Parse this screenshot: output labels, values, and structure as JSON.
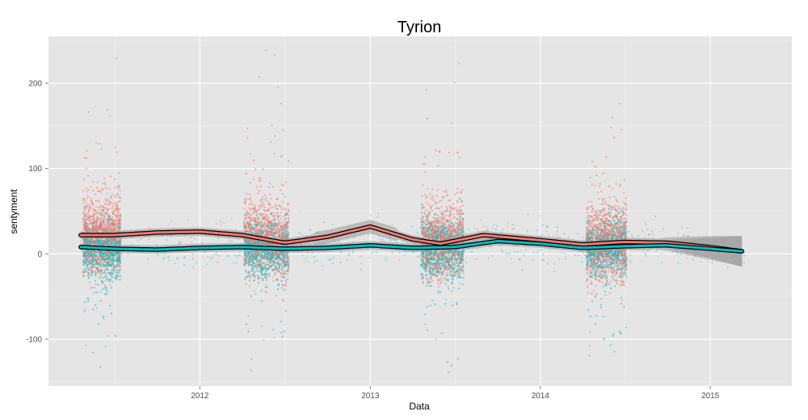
{
  "chart_data": {
    "type": "scatter",
    "title": "Tyrion",
    "xlabel": "Data",
    "ylabel": "sentyment",
    "xlim": [
      "2011-02-10",
      "2015-06-25"
    ],
    "ylim": [
      -155,
      255
    ],
    "x_ticks": [
      {
        "label": "2012",
        "date": "2012-01-01"
      },
      {
        "label": "2013",
        "date": "2013-01-01"
      },
      {
        "label": "2014",
        "date": "2014-01-01"
      },
      {
        "label": "2015",
        "date": "2015-01-01"
      }
    ],
    "y_ticks": [
      {
        "label": "-100",
        "value": -100
      },
      {
        "label": "0",
        "value": 0
      },
      {
        "label": "100",
        "value": 100
      },
      {
        "label": "200",
        "value": 200
      }
    ],
    "grid": true,
    "legend": "none",
    "colors": {
      "series_red": "#F8766D",
      "series_teal": "#00BFC4",
      "panel_bg": "#E5E5E5",
      "grid_major": "#FFFFFF",
      "grid_minor": "#F2F2F2",
      "ribbon": "#999999",
      "line_outline": "#000000"
    },
    "clusters": [
      {
        "start": "2011-04-25",
        "end": "2011-07-15"
      },
      {
        "start": "2012-04-05",
        "end": "2012-07-10"
      },
      {
        "start": "2013-04-20",
        "end": "2013-07-20"
      },
      {
        "start": "2014-04-10",
        "end": "2014-07-05"
      }
    ],
    "series": [
      {
        "color": "#F8766D",
        "smooth": [
          {
            "x": "2011-04-20",
            "y": 22
          },
          {
            "x": "2011-07-01",
            "y": 22
          },
          {
            "x": "2011-10-01",
            "y": 25
          },
          {
            "x": "2012-01-01",
            "y": 26
          },
          {
            "x": "2012-04-01",
            "y": 22
          },
          {
            "x": "2012-07-01",
            "y": 13
          },
          {
            "x": "2012-10-01",
            "y": 20
          },
          {
            "x": "2013-01-01",
            "y": 32
          },
          {
            "x": "2013-04-01",
            "y": 17
          },
          {
            "x": "2013-06-01",
            "y": 12
          },
          {
            "x": "2013-09-01",
            "y": 22
          },
          {
            "x": "2014-01-01",
            "y": 16
          },
          {
            "x": "2014-04-01",
            "y": 11
          },
          {
            "x": "2014-07-01",
            "y": 14
          },
          {
            "x": "2014-10-01",
            "y": 13
          },
          {
            "x": "2015-01-01",
            "y": 8
          },
          {
            "x": "2015-03-10",
            "y": 3
          }
        ]
      },
      {
        "color": "#00BFC4",
        "smooth": [
          {
            "x": "2011-04-20",
            "y": 8
          },
          {
            "x": "2011-07-01",
            "y": 6
          },
          {
            "x": "2011-10-01",
            "y": 5
          },
          {
            "x": "2012-01-01",
            "y": 7
          },
          {
            "x": "2012-04-01",
            "y": 8
          },
          {
            "x": "2012-07-01",
            "y": 6
          },
          {
            "x": "2012-10-01",
            "y": 7
          },
          {
            "x": "2013-01-01",
            "y": 10
          },
          {
            "x": "2013-04-01",
            "y": 7
          },
          {
            "x": "2013-07-01",
            "y": 8
          },
          {
            "x": "2013-10-01",
            "y": 15
          },
          {
            "x": "2014-01-01",
            "y": 12
          },
          {
            "x": "2014-04-01",
            "y": 7
          },
          {
            "x": "2014-07-01",
            "y": 9
          },
          {
            "x": "2014-10-01",
            "y": 10
          },
          {
            "x": "2015-01-01",
            "y": 6
          },
          {
            "x": "2015-03-10",
            "y": 3
          }
        ]
      }
    ]
  }
}
